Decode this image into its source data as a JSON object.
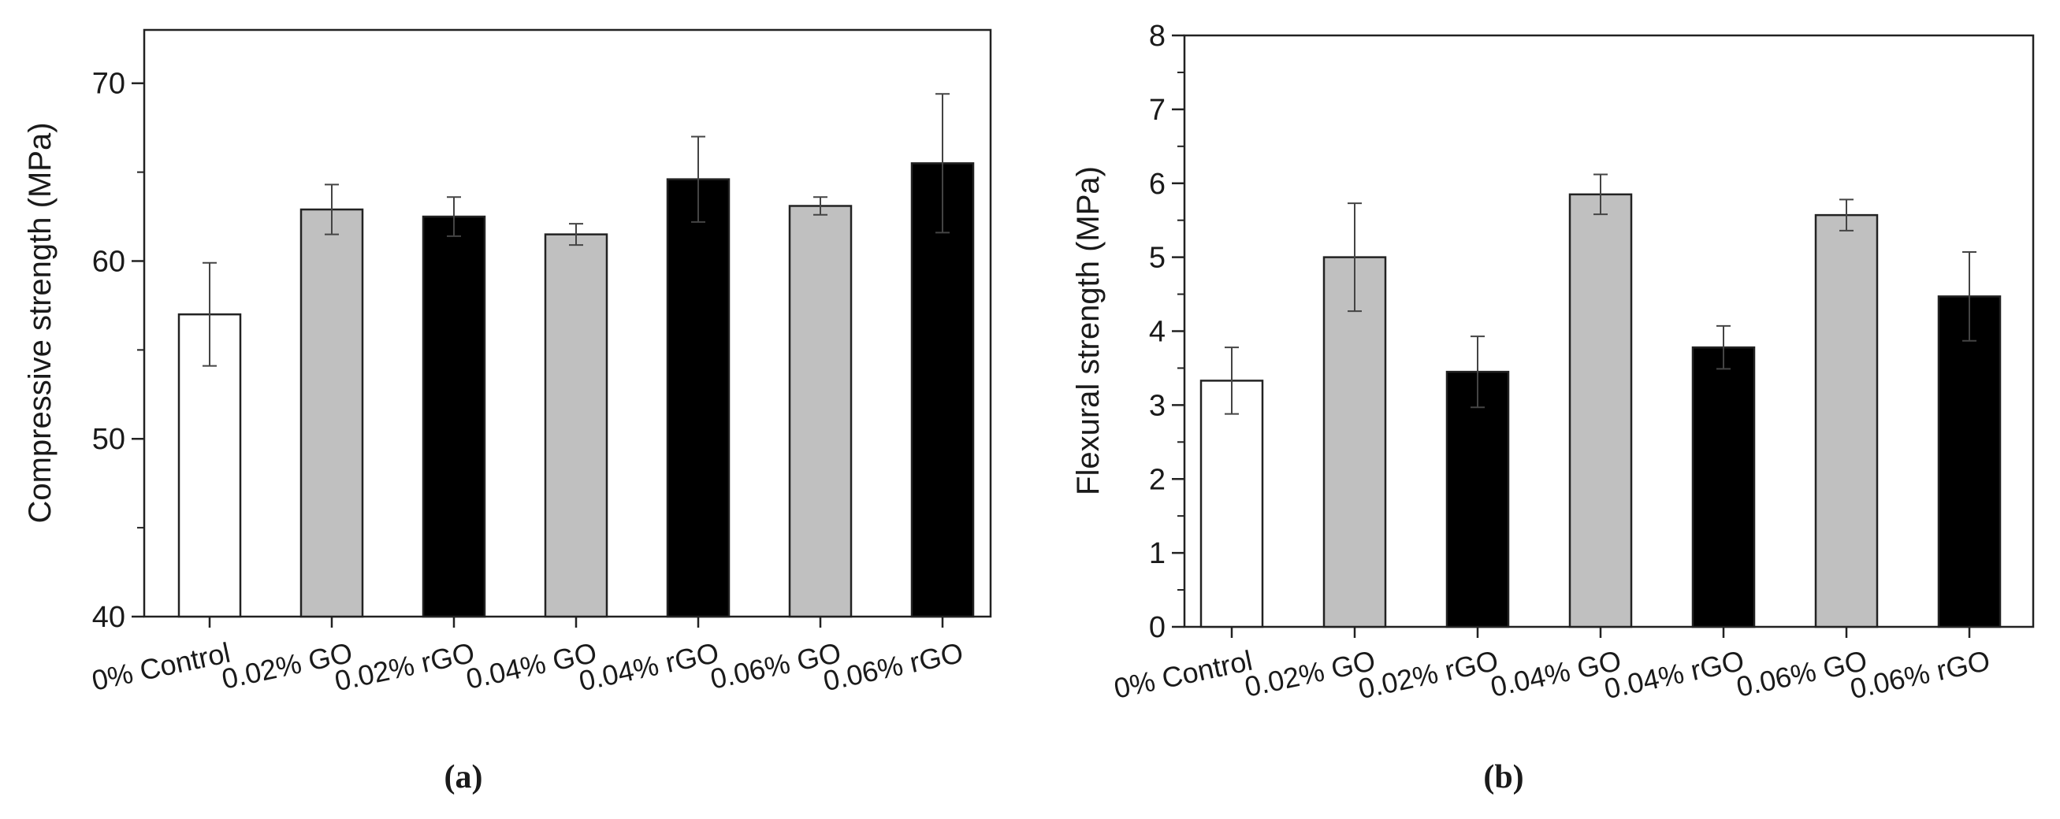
{
  "chart_data": [
    {
      "type": "bar",
      "panel_label": "(a)",
      "title": "",
      "xlabel": "",
      "ylabel": "Compressive strength (MPa)",
      "ylim": [
        40,
        73
      ],
      "yticks": [
        40,
        50,
        60,
        70
      ],
      "categories": [
        "0% Control",
        "0.02% GO",
        "0.02% rGO",
        "0.04% GO",
        "0.04% rGO",
        "0.06% GO",
        "0.06% rGO"
      ],
      "values": [
        57.0,
        62.9,
        62.5,
        61.5,
        64.6,
        63.1,
        65.5
      ],
      "errors": [
        2.9,
        1.4,
        1.1,
        0.6,
        2.4,
        0.5,
        3.9
      ],
      "fills": [
        "#ffffff",
        "#c0c0c0",
        "#000000",
        "#c0c0c0",
        "#000000",
        "#c0c0c0",
        "#000000"
      ]
    },
    {
      "type": "bar",
      "panel_label": "(b)",
      "title": "",
      "xlabel": "",
      "ylabel": "Flexural strength (MPa)",
      "ylim": [
        0,
        8
      ],
      "yticks": [
        0,
        1,
        2,
        3,
        4,
        5,
        6,
        7,
        8
      ],
      "categories": [
        "0% Control",
        "0.02% GO",
        "0.02% rGO",
        "0.04% GO",
        "0.04% rGO",
        "0.06% GO",
        "0.06% rGO"
      ],
      "values": [
        3.33,
        5.0,
        3.45,
        5.85,
        3.78,
        5.57,
        4.47
      ],
      "errors": [
        0.45,
        0.73,
        0.48,
        0.27,
        0.29,
        0.21,
        0.6
      ],
      "fills": [
        "#ffffff",
        "#c0c0c0",
        "#000000",
        "#c0c0c0",
        "#000000",
        "#c0c0c0",
        "#000000"
      ]
    }
  ]
}
